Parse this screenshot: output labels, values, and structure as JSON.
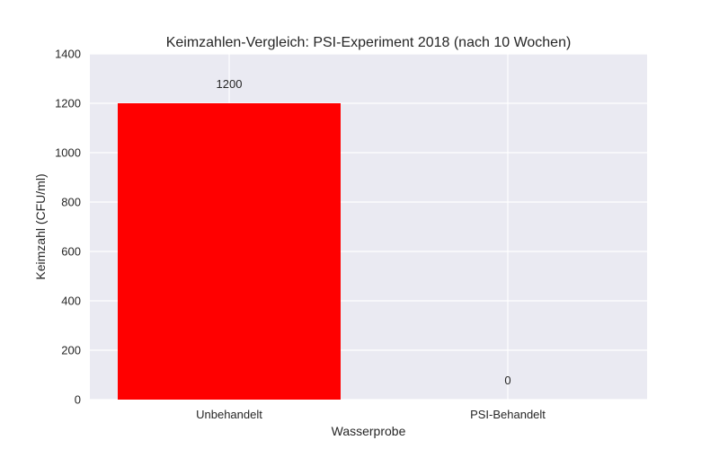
{
  "chart_data": {
    "type": "bar",
    "title": "Keimzahlen-Vergleich: PSI-Experiment 2018 (nach 10 Wochen)",
    "xlabel": "Wasserprobe",
    "ylabel": "Keimzahl (CFU/ml)",
    "categories": [
      "Unbehandelt",
      "PSI-Behandelt"
    ],
    "values": [
      1200,
      0
    ],
    "data_labels": [
      "1200",
      "0"
    ],
    "bar_colors": [
      "#ff0000",
      "#008000"
    ],
    "ylim": [
      0,
      1400
    ],
    "yticks": [
      0,
      200,
      400,
      600,
      800,
      1000,
      1200,
      1400
    ],
    "grid": true,
    "legend": null,
    "style": {
      "plot_bg": "#eaeaf2",
      "grid_color": "#ffffff",
      "figure_bg": "#ffffff"
    }
  }
}
